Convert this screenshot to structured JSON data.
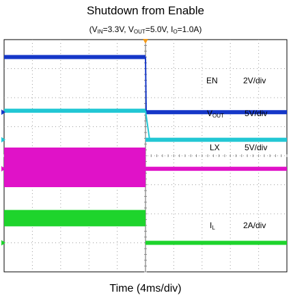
{
  "title": "Shutdown from Enable",
  "subtitle": {
    "vin_label": "V",
    "vin_sub": "IN",
    "vin_value": "=3.3V,",
    "vout_label": "V",
    "vout_sub": "OUT",
    "vout_value": "=5.0V,",
    "io_label": "I",
    "io_sub": "O",
    "io_value": "=1.0A)",
    "open_paren": "("
  },
  "chart_data": {
    "type": "line",
    "title": "Shutdown from Enable",
    "xlabel": "Time (4ms/div)",
    "x_divisions": 10,
    "y_divisions": 8,
    "grid": true,
    "trigger_division": 5,
    "series": [
      {
        "key": "en",
        "name": "EN",
        "scale": "2V/div",
        "color": "#1537c8",
        "level_before_div": 7.4,
        "level_after_div": 5.5,
        "edge_div": 5.0,
        "noisy": false
      },
      {
        "key": "vout",
        "name": "VOUT",
        "scale": "5V/div",
        "color": "#22c7d4",
        "level_before_div": 5.55,
        "level_after_div": 4.55,
        "edge_div": 5.0,
        "noisy": false
      },
      {
        "key": "lx",
        "name": "LX",
        "scale": "5V/div",
        "color": "#e012c8",
        "level_before_div": 3.6,
        "level_after_div": 3.55,
        "edge_div": 5.0,
        "noisy": true
      },
      {
        "key": "il",
        "name": "IL",
        "scale": "2A/div",
        "color": "#1ed42c",
        "level_before_div": 1.85,
        "level_after_div": 1.0,
        "edge_div": 5.0,
        "noisy": false
      }
    ]
  },
  "labels": {
    "en": {
      "name": "EN",
      "scale": "2V/div"
    },
    "vout": {
      "name_main": "V",
      "name_sub": "OUT",
      "scale": "5V/div"
    },
    "lx": {
      "name": "LX",
      "scale": "5V/div"
    },
    "il": {
      "name_main": "I",
      "name_sub": "L",
      "scale": "2A/div"
    }
  }
}
